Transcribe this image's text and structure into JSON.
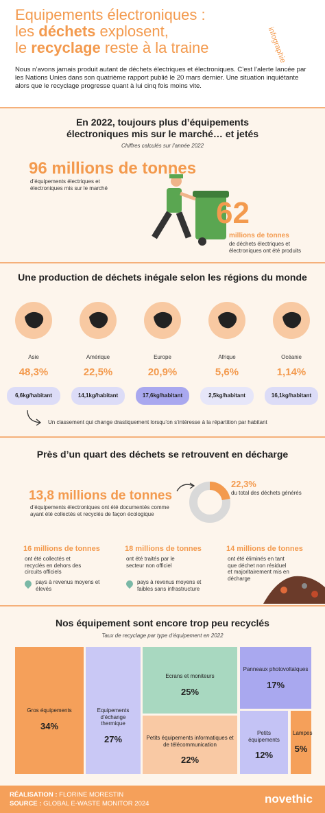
{
  "header": {
    "title": {
      "line1": "Equipements électroniques :",
      "line2_pre": "les ",
      "line2_bold": "déchets",
      "line2_post": " explosent,",
      "line3_pre": "le ",
      "line3_bold": "recyclage",
      "line3_post": " reste à la traine"
    },
    "badge": "infographie",
    "intro": "Nous n’avons jamais produit autant de déchets électriques et électroniques. C’est l’alerte lancée par les Nations Unies dans son quatrième rapport publié le 20 mars dernier. Une situation inquiétante alors que le recyclage  progresse quant à lui cinq fois moins vite."
  },
  "market": {
    "title": "En 2022, toujours plus d’équipements électroniques mis sur le marché… et jetés",
    "subtitle": "Chiffres calculés sur l’année 2022",
    "big1": "96 millions de tonnes",
    "desc1": "d’équipements électriques et électroniques mis sur le marché",
    "big2": "62",
    "big2_unit": "millions de tonnes",
    "desc2": "de déchets électriques et électroniques ont été produits"
  },
  "regions": {
    "title": "Une production de déchets inégale selon les régions du monde",
    "items": [
      {
        "name": "Asie",
        "share": "48,3%",
        "per_capita": "6,6kg/habitant"
      },
      {
        "name": "Amérique",
        "share": "22,5%",
        "per_capita": "14,1kg/habitant"
      },
      {
        "name": "Europe",
        "share": "20,9%",
        "per_capita": "17,6kg/habitant"
      },
      {
        "name": "Afrique",
        "share": "5,6%",
        "per_capita": "2,5kg/habitant"
      },
      {
        "name": "Océanie",
        "share": "1,14%",
        "per_capita": "16,1kg/habitant"
      }
    ],
    "note": "Un classement qui change drastiquement lorsqu’on s’intéresse à la répartition par habitant"
  },
  "landfill": {
    "title": "Près d’un quart des déchets se retrouvent en décharge",
    "big": "13,8 millions de tonnes",
    "desc": "d’équipements électroniques ont été documentés comme ayant été collectés et recyclés de façon écologique",
    "share": {
      "value": 22.3,
      "label": "22,3%"
    },
    "share_desc": "du total des déchets générés",
    "columns": [
      {
        "amount": "16 millions de tonnes",
        "desc": "ont été collectés et recyclés en dehors des circuits officiels",
        "pin": "pays à revenus moyens et élevés"
      },
      {
        "amount": "18 millions de tonnes",
        "desc": "ont été traités par le secteur non officiel",
        "pin": "pays à revenus moyens et faibles sans infrastructure"
      },
      {
        "amount": "14 millions de tonnes",
        "desc": "ont été éliminés en tant que déchet non résiduel et majoritairement mis en décharge"
      }
    ]
  },
  "recycling": {
    "title": "Nos équipement sont encore trop peu recyclés",
    "subtitle": "Taux de recyclage par type d’équipement en 2022",
    "items": [
      {
        "name": "Gros équipements",
        "rate": "34%"
      },
      {
        "name": "Equipements d’échange thermique",
        "rate": "27%"
      },
      {
        "name": "Ecrans et moniteurs",
        "rate": "25%"
      },
      {
        "name": "Panneaux photovoltaïques",
        "rate": "17%"
      },
      {
        "name": "Petits équipements informatiques et de télécommunication",
        "rate": "22%"
      },
      {
        "name": "Petits équipements",
        "rate": "12%"
      },
      {
        "name": "Lampes",
        "rate": "5%"
      }
    ]
  },
  "footer": {
    "credit_label": "RÉALISATION :",
    "credit": "FLORINE MORESTIN",
    "source_label": "SOURCE :",
    "source": "GLOBAL E-WASTE MONITOR 2024",
    "logo": "novethic"
  }
}
